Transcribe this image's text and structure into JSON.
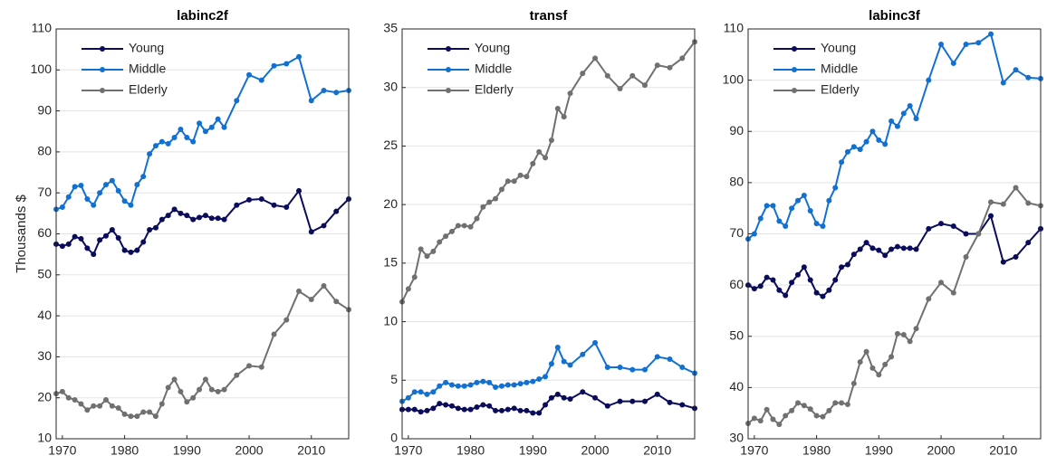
{
  "chart_data": [
    {
      "type": "line",
      "title": "labinc2f",
      "y_label": "Thousands $",
      "x": [
        1969,
        1970,
        1971,
        1972,
        1973,
        1974,
        1975,
        1976,
        1977,
        1978,
        1979,
        1980,
        1981,
        1982,
        1983,
        1984,
        1985,
        1986,
        1987,
        1988,
        1989,
        1990,
        1991,
        1992,
        1993,
        1994,
        1995,
        1996,
        1998,
        2000,
        2002,
        2004,
        2006,
        2008,
        2010,
        2012,
        2014,
        2016
      ],
      "series": [
        {
          "name": "Young",
          "color": "#0b0b5c",
          "values": [
            57.5,
            57,
            57.5,
            59.3,
            58.8,
            56.5,
            55,
            58.5,
            59.5,
            61,
            59,
            56,
            55.5,
            56,
            58,
            61,
            61.5,
            63.5,
            64.5,
            66,
            65,
            64.5,
            63.5,
            64,
            64.5,
            63.8,
            63.8,
            63.5,
            67,
            68.3,
            68.5,
            67,
            66.5,
            70.5,
            60.5,
            62,
            65.5,
            68.5
          ]
        },
        {
          "name": "Middle",
          "color": "#1270d0",
          "values": [
            66,
            66.5,
            69,
            71.5,
            71.8,
            68.5,
            67,
            70,
            72,
            73,
            70.5,
            68,
            67,
            72,
            74,
            79.5,
            81.5,
            82.5,
            82,
            83.5,
            85.5,
            83.5,
            82.5,
            87,
            85,
            86,
            88,
            86,
            92.5,
            98.8,
            97.5,
            101,
            101.5,
            103.2,
            92.5,
            95,
            94.5,
            95
          ]
        },
        {
          "name": "Elderly",
          "color": "#707070",
          "values": [
            21,
            21.5,
            20,
            19.5,
            18.5,
            17,
            18,
            18,
            19.5,
            18,
            17.5,
            16,
            15.5,
            15.5,
            16.5,
            16.5,
            15.5,
            18.5,
            22.5,
            24.5,
            21.5,
            19,
            20,
            22,
            24.5,
            22,
            21.5,
            22,
            25.5,
            27.8,
            27.5,
            35.5,
            39,
            46,
            44,
            47.3,
            43.5,
            41.5
          ]
        }
      ],
      "xlim": [
        1969,
        2016
      ],
      "xticks": [
        1970,
        1980,
        1990,
        2000,
        2010
      ],
      "ylim": [
        10,
        110
      ],
      "yticks": [
        10,
        20,
        30,
        40,
        50,
        60,
        70,
        80,
        90,
        100,
        110
      ],
      "grid": true,
      "legend": "top-left"
    },
    {
      "type": "line",
      "title": "transf",
      "x": [
        1969,
        1970,
        1971,
        1972,
        1973,
        1974,
        1975,
        1976,
        1977,
        1978,
        1979,
        1980,
        1981,
        1982,
        1983,
        1984,
        1985,
        1986,
        1987,
        1988,
        1989,
        1990,
        1991,
        1992,
        1993,
        1994,
        1995,
        1996,
        1998,
        2000,
        2002,
        2004,
        2006,
        2008,
        2010,
        2012,
        2014,
        2016
      ],
      "series": [
        {
          "name": "Young",
          "color": "#0b0b5c",
          "values": [
            2.5,
            2.5,
            2.5,
            2.3,
            2.4,
            2.6,
            3,
            2.9,
            2.8,
            2.6,
            2.5,
            2.5,
            2.7,
            2.9,
            2.8,
            2.4,
            2.4,
            2.5,
            2.6,
            2.4,
            2.4,
            2.2,
            2.2,
            2.9,
            3.5,
            3.8,
            3.5,
            3.4,
            4,
            3.5,
            2.8,
            3.2,
            3.2,
            3.2,
            3.8,
            3.1,
            2.9,
            2.6
          ]
        },
        {
          "name": "Middle",
          "color": "#1270d0",
          "values": [
            3.2,
            3.5,
            4,
            4,
            3.8,
            4,
            4.5,
            4.8,
            4.6,
            4.5,
            4.5,
            4.6,
            4.8,
            4.9,
            4.8,
            4.4,
            4.5,
            4.6,
            4.6,
            4.7,
            4.8,
            4.9,
            5.1,
            5.3,
            6.4,
            7.8,
            6.6,
            6.3,
            7.2,
            8.2,
            6.1,
            6.1,
            5.9,
            5.9,
            7,
            6.8,
            6.1,
            5.6
          ]
        },
        {
          "name": "Elderly",
          "color": "#707070",
          "values": [
            11.7,
            12.8,
            13.8,
            16.2,
            15.6,
            16,
            16.8,
            17.3,
            17.7,
            18.2,
            18.2,
            18.1,
            18.8,
            19.8,
            20.2,
            20.5,
            21.3,
            22,
            22,
            22.5,
            22.4,
            23.5,
            24.5,
            24,
            25.5,
            28.2,
            27.5,
            29.5,
            31.2,
            32.5,
            31,
            29.9,
            31,
            30.2,
            31.9,
            31.7,
            32.5,
            33.9
          ]
        }
      ],
      "xlim": [
        1969,
        2016
      ],
      "xticks": [
        1970,
        1980,
        1990,
        2000,
        2010
      ],
      "ylim": [
        0,
        35
      ],
      "yticks": [
        0,
        5,
        10,
        15,
        20,
        25,
        30,
        35
      ],
      "grid": true,
      "legend": "top-left"
    },
    {
      "type": "line",
      "title": "labinc3f",
      "x": [
        1969,
        1970,
        1971,
        1972,
        1973,
        1974,
        1975,
        1976,
        1977,
        1978,
        1979,
        1980,
        1981,
        1982,
        1983,
        1984,
        1985,
        1986,
        1987,
        1988,
        1989,
        1990,
        1991,
        1992,
        1993,
        1994,
        1995,
        1996,
        1998,
        2000,
        2002,
        2004,
        2006,
        2008,
        2010,
        2012,
        2014,
        2016
      ],
      "series": [
        {
          "name": "Young",
          "color": "#0b0b5c",
          "values": [
            60,
            59.3,
            59.8,
            61.5,
            61,
            59,
            58,
            60.5,
            62,
            63.5,
            61,
            58.5,
            57.8,
            59,
            61,
            63.5,
            64,
            66,
            67,
            68.3,
            67.2,
            66.8,
            65.8,
            67,
            67.5,
            67.2,
            67.2,
            67,
            71,
            72,
            71.5,
            70,
            70,
            73.5,
            64.5,
            65.5,
            68.3,
            71
          ]
        },
        {
          "name": "Middle",
          "color": "#1270d0",
          "values": [
            69,
            70,
            73,
            75.5,
            75.5,
            72.5,
            71.5,
            75,
            76.5,
            77.5,
            74.5,
            72,
            71.5,
            76.5,
            79,
            84,
            86,
            87,
            86.5,
            88,
            90,
            88.3,
            87.5,
            92,
            91,
            93.5,
            95,
            92.5,
            100,
            107,
            103.3,
            107,
            107.3,
            109,
            99.5,
            102,
            100.5,
            100.3
          ]
        },
        {
          "name": "Elderly",
          "color": "#707070",
          "values": [
            33,
            34,
            33.5,
            35.7,
            33.8,
            32.8,
            34.5,
            35.5,
            37,
            36.5,
            35.8,
            34.5,
            34.3,
            35.5,
            37,
            37,
            36.7,
            40.8,
            45,
            47,
            43.8,
            42.5,
            44.5,
            46,
            50.5,
            50.3,
            49,
            51.5,
            57.3,
            60.5,
            58.5,
            65.5,
            70,
            76.2,
            75.8,
            79,
            76,
            75.5
          ]
        }
      ],
      "xlim": [
        1969,
        2016
      ],
      "xticks": [
        1970,
        1980,
        1990,
        2000,
        2010
      ],
      "ylim": [
        30,
        110
      ],
      "yticks": [
        30,
        40,
        50,
        60,
        70,
        80,
        90,
        100,
        110
      ],
      "grid": true,
      "legend": "top-left"
    }
  ]
}
